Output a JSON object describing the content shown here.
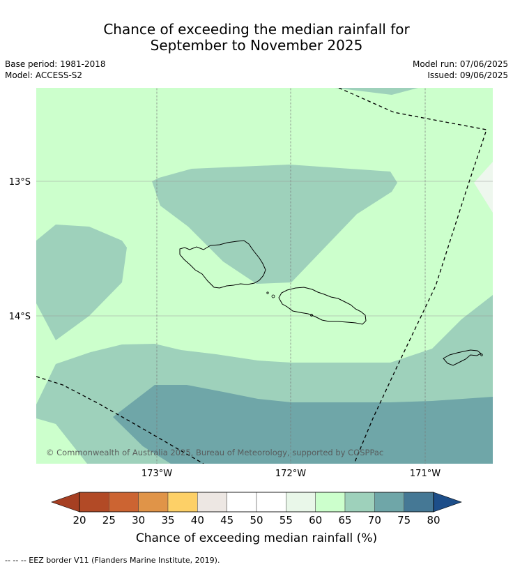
{
  "title_line1": "Chance of exceeding the median rainfall for",
  "title_line2": "September to November 2025",
  "base_period": "Base period: 1981-2018",
  "model": "Model: ACCESS-S2",
  "model_run": "Model run: 07/06/2025",
  "issued": "Issued: 09/06/2025",
  "lat_labels": [
    "13°S",
    "14°S"
  ],
  "lon_labels": [
    "173°W",
    "172°W",
    "171°W"
  ],
  "copyright": "© Commonwealth of Australia 2025, Bureau of Meteorology, supported by COSPPac",
  "colorbar": {
    "title": "Chance of exceeding median rainfall (%)",
    "ticks": [
      "20",
      "25",
      "30",
      "35",
      "40",
      "45",
      "50",
      "55",
      "60",
      "65",
      "70",
      "75",
      "80"
    ],
    "colors": [
      "#a63f22",
      "#b24a26",
      "#cc6432",
      "#e09448",
      "#fdd067",
      "#ede7e3",
      "#ffffff",
      "#ffffff",
      "#e9f7e9",
      "#ccffcc",
      "#9ed1bb",
      "#6fa6a8",
      "#457895",
      "#1d4e89"
    ]
  },
  "footnote": "--  --  -- EEZ border V11 (Flanders Marine Institute, 2019)."
}
